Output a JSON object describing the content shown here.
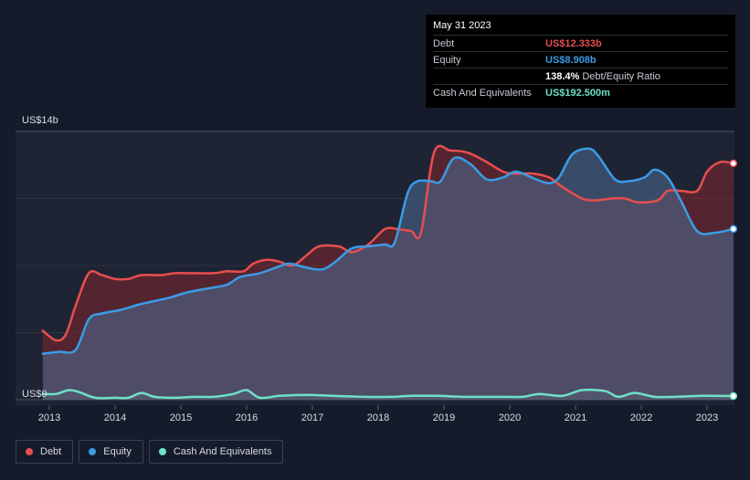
{
  "tooltip": {
    "date": "May 31 2023",
    "rows": [
      {
        "label": "Debt",
        "value": "US$12.333b",
        "color": "#e84e4e"
      },
      {
        "label": "Equity",
        "value": "US$8.908b",
        "color": "#3a9ce6"
      },
      {
        "label": "",
        "value": "138.4%",
        "unit": "Debt/Equity Ratio",
        "color": "#ffffff"
      },
      {
        "label": "Cash And Equivalents",
        "value": "US$192.500m",
        "color": "#6fe0c8"
      }
    ]
  },
  "legend": [
    {
      "label": "Debt",
      "color": "#e84e4e"
    },
    {
      "label": "Equity",
      "color": "#3a9ce6"
    },
    {
      "label": "Cash And Equivalents",
      "color": "#6fe0c8"
    }
  ],
  "chart_data": {
    "type": "area",
    "y_top_label": "US$14b",
    "y_zero_label": "US$0",
    "ylim": [
      0,
      14
    ],
    "xlim": [
      2012.9,
      2023.4
    ],
    "x_ticks": [
      "2013",
      "2014",
      "2015",
      "2016",
      "2017",
      "2018",
      "2019",
      "2020",
      "2021",
      "2022",
      "2023"
    ],
    "grid": true,
    "legend_position": "bottom-left",
    "series": [
      {
        "name": "Debt",
        "color": "#e84e4e",
        "x": [
          2012.9,
          2013.1,
          2013.25,
          2013.4,
          2013.6,
          2013.8,
          2014.0,
          2014.2,
          2014.4,
          2014.7,
          2014.9,
          2015.2,
          2015.5,
          2015.7,
          2015.95,
          2016.1,
          2016.3,
          2016.5,
          2016.7,
          2016.9,
          2017.1,
          2017.4,
          2017.6,
          2017.85,
          2018.1,
          2018.3,
          2018.5,
          2018.65,
          2018.85,
          2019.1,
          2019.35,
          2019.6,
          2019.9,
          2020.1,
          2020.35,
          2020.6,
          2020.8,
          2021.1,
          2021.3,
          2021.55,
          2021.75,
          2021.95,
          2022.25,
          2022.4,
          2022.6,
          2022.85,
          2023.0,
          2023.2,
          2023.4
        ],
        "y": [
          3.6,
          3.1,
          3.4,
          4.9,
          6.6,
          6.5,
          6.3,
          6.3,
          6.5,
          6.5,
          6.6,
          6.6,
          6.6,
          6.7,
          6.7,
          7.1,
          7.3,
          7.2,
          7.0,
          7.5,
          8.0,
          8.0,
          7.7,
          8.1,
          8.9,
          8.9,
          8.8,
          8.7,
          12.9,
          13.0,
          12.9,
          12.5,
          11.9,
          11.8,
          11.8,
          11.6,
          11.1,
          10.5,
          10.4,
          10.5,
          10.5,
          10.3,
          10.4,
          10.9,
          10.9,
          10.9,
          11.9,
          12.4,
          12.333
        ]
      },
      {
        "name": "Equity",
        "color": "#3a9ce6",
        "x": [
          2012.9,
          2013.15,
          2013.4,
          2013.6,
          2013.8,
          2014.1,
          2014.4,
          2014.8,
          2015.1,
          2015.4,
          2015.7,
          2015.9,
          2016.2,
          2016.45,
          2016.65,
          2016.9,
          2017.15,
          2017.35,
          2017.6,
          2017.85,
          2018.1,
          2018.25,
          2018.45,
          2018.6,
          2018.8,
          2018.95,
          2019.15,
          2019.4,
          2019.65,
          2019.9,
          2020.1,
          2020.4,
          2020.6,
          2020.75,
          2020.95,
          2021.2,
          2021.35,
          2021.6,
          2021.8,
          2022.05,
          2022.2,
          2022.4,
          2022.6,
          2022.85,
          2023.1,
          2023.4
        ],
        "y": [
          2.4,
          2.5,
          2.6,
          4.2,
          4.5,
          4.7,
          5.0,
          5.3,
          5.6,
          5.8,
          6.0,
          6.4,
          6.6,
          6.9,
          7.1,
          6.9,
          6.8,
          7.2,
          7.9,
          8.0,
          8.1,
          8.2,
          10.8,
          11.4,
          11.4,
          11.4,
          12.6,
          12.3,
          11.5,
          11.6,
          11.9,
          11.5,
          11.3,
          11.6,
          12.8,
          13.1,
          12.7,
          11.5,
          11.4,
          11.6,
          12.0,
          11.6,
          10.4,
          8.8,
          8.7,
          8.908
        ]
      },
      {
        "name": "Cash And Equivalents",
        "color": "#6fe0c8",
        "x": [
          2012.9,
          2013.1,
          2013.3,
          2013.45,
          2013.7,
          2014.0,
          2014.2,
          2014.4,
          2014.6,
          2014.9,
          2015.2,
          2015.5,
          2015.8,
          2016.0,
          2016.2,
          2016.5,
          2016.9,
          2017.3,
          2017.8,
          2018.2,
          2018.5,
          2018.9,
          2019.3,
          2019.9,
          2020.2,
          2020.45,
          2020.8,
          2021.1,
          2021.45,
          2021.65,
          2021.9,
          2022.2,
          2022.5,
          2022.9,
          2023.1,
          2023.4
        ],
        "y": [
          0.3,
          0.3,
          0.5,
          0.4,
          0.1,
          0.1,
          0.1,
          0.35,
          0.15,
          0.1,
          0.15,
          0.15,
          0.3,
          0.5,
          0.1,
          0.2,
          0.25,
          0.2,
          0.15,
          0.15,
          0.2,
          0.2,
          0.15,
          0.15,
          0.15,
          0.3,
          0.2,
          0.5,
          0.45,
          0.15,
          0.35,
          0.15,
          0.15,
          0.2,
          0.2,
          0.1925
        ]
      }
    ]
  }
}
